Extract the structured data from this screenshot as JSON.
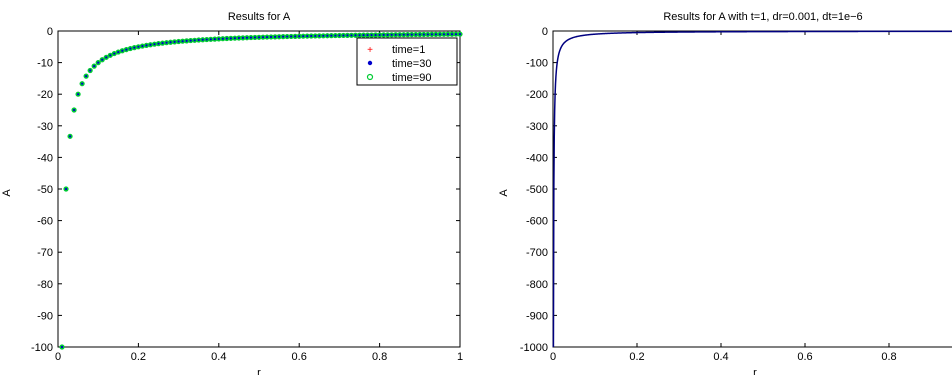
{
  "chart_data": [
    {
      "type": "scatter",
      "title": "Results for A",
      "xlabel": "r",
      "ylabel": "A",
      "xlim": [
        0,
        1
      ],
      "ylim": [
        -100,
        0
      ],
      "xticks": [
        0,
        0.2,
        0.4,
        0.6,
        0.8,
        1
      ],
      "xtick_labels": [
        "0",
        "0.2",
        "0.4",
        "0.6",
        "0.8",
        "1"
      ],
      "yticks": [
        -100,
        -90,
        -80,
        -70,
        -60,
        -50,
        -40,
        -30,
        -20,
        -10,
        0
      ],
      "ytick_labels": [
        "-100",
        "-90",
        "-80",
        "-70",
        "-60",
        "-50",
        "-40",
        "-30",
        "-20",
        "-10",
        "0"
      ],
      "legend": {
        "position": "top-right",
        "entries": [
          "time=1",
          "time=30",
          "time=90"
        ]
      },
      "formula": "A = -1/r",
      "r_start": 0.01,
      "r_step": 0.01,
      "r_end": 1.0,
      "series": [
        {
          "name": "time=1",
          "marker": "plus",
          "color": "#ff0000"
        },
        {
          "name": "time=30",
          "marker": "dot",
          "color": "#0000cc"
        },
        {
          "name": "time=90",
          "marker": "circle",
          "color": "#00cc33"
        }
      ]
    },
    {
      "type": "line",
      "title": "Results for A with t=1, dr=0.001, dt=1e−6",
      "xlabel": "r",
      "ylabel": "A",
      "xlim": [
        0,
        1
      ],
      "ylim": [
        -1000,
        0
      ],
      "xticks": [
        0,
        0.2,
        0.4,
        0.6,
        0.8
      ],
      "xtick_labels": [
        "0",
        "0.2",
        "0.4",
        "0.6",
        "0.8"
      ],
      "yticks": [
        -1000,
        -900,
        -800,
        -700,
        -600,
        -500,
        -400,
        -300,
        -200,
        -100,
        0
      ],
      "ytick_labels": [
        "-1000",
        "-900",
        "-800",
        "-700",
        "-600",
        "-500",
        "-400",
        "-300",
        "-200",
        "-100",
        "0"
      ],
      "formula": "A = -1/r",
      "r_start": 0.001,
      "r_step": 0.001,
      "r_end": 1.0,
      "series": [
        {
          "color": "#000080"
        }
      ]
    }
  ]
}
